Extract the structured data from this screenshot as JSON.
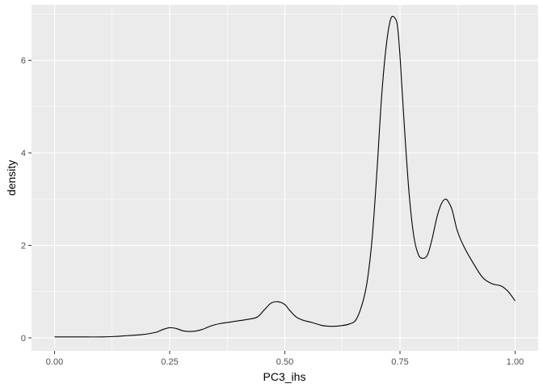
{
  "chart_data": {
    "type": "line",
    "xlabel": "PC3_ihs",
    "ylabel": "density",
    "xlim": [
      -0.05,
      1.05
    ],
    "ylim": [
      -0.28,
      7.2
    ],
    "x_ticks": [
      0.0,
      0.25,
      0.5,
      0.75,
      1.0
    ],
    "x_tick_labels": [
      "0.00",
      "0.25",
      "0.50",
      "0.75",
      "1.00"
    ],
    "x_minor_ticks": [
      0.125,
      0.375,
      0.625,
      0.875
    ],
    "y_ticks": [
      0,
      2,
      4,
      6
    ],
    "y_tick_labels": [
      "0",
      "2",
      "4",
      "6"
    ],
    "y_minor_ticks": [
      1,
      3,
      5,
      7
    ],
    "grid": true,
    "series": [
      {
        "x": [
          0.0,
          0.05,
          0.1,
          0.13,
          0.16,
          0.19,
          0.22,
          0.235,
          0.25,
          0.265,
          0.28,
          0.3,
          0.32,
          0.34,
          0.36,
          0.38,
          0.4,
          0.42,
          0.44,
          0.455,
          0.47,
          0.485,
          0.5,
          0.51,
          0.525,
          0.54,
          0.56,
          0.58,
          0.6,
          0.62,
          0.64,
          0.655,
          0.67,
          0.68,
          0.69,
          0.7,
          0.71,
          0.72,
          0.73,
          0.74,
          0.745,
          0.75,
          0.76,
          0.77,
          0.78,
          0.79,
          0.8,
          0.81,
          0.82,
          0.83,
          0.84,
          0.85,
          0.86,
          0.865,
          0.875,
          0.89,
          0.91,
          0.93,
          0.95,
          0.97,
          0.985,
          1.0
        ],
        "y": [
          0.02,
          0.02,
          0.02,
          0.03,
          0.05,
          0.07,
          0.12,
          0.18,
          0.22,
          0.2,
          0.15,
          0.14,
          0.18,
          0.26,
          0.31,
          0.34,
          0.37,
          0.4,
          0.45,
          0.6,
          0.75,
          0.78,
          0.72,
          0.6,
          0.45,
          0.38,
          0.33,
          0.27,
          0.25,
          0.26,
          0.3,
          0.4,
          0.8,
          1.3,
          2.2,
          3.6,
          5.2,
          6.3,
          6.9,
          6.9,
          6.7,
          6.1,
          4.5,
          3.1,
          2.2,
          1.8,
          1.72,
          1.8,
          2.15,
          2.6,
          2.9,
          3.0,
          2.85,
          2.7,
          2.3,
          1.95,
          1.6,
          1.3,
          1.17,
          1.12,
          1.0,
          0.8
        ]
      }
    ]
  }
}
